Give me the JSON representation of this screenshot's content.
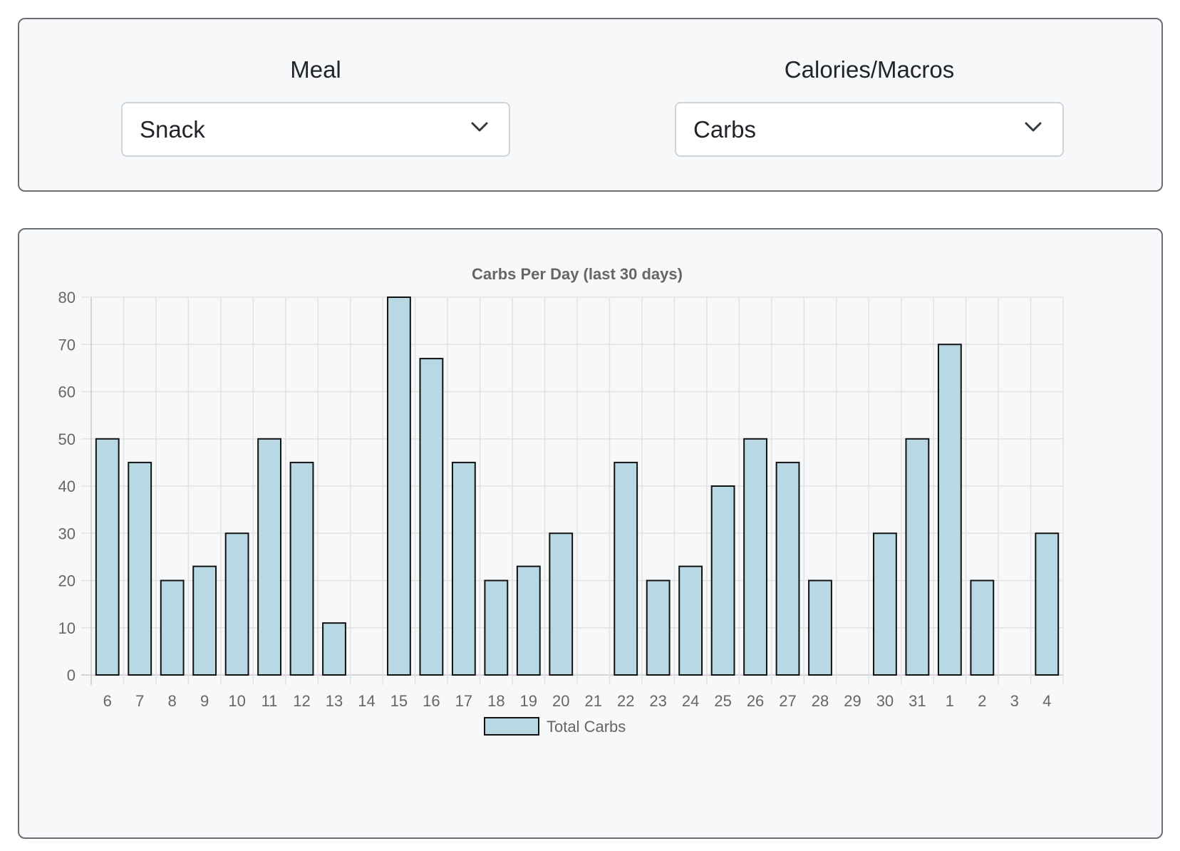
{
  "filters": {
    "meal": {
      "label": "Meal",
      "value": "Snack"
    },
    "macro": {
      "label": "Calories/Macros",
      "value": "Carbs"
    }
  },
  "chart_data": {
    "type": "bar",
    "title": "Carbs Per Day (last 30 days)",
    "xlabel": "",
    "ylabel": "",
    "categories": [
      "6",
      "7",
      "8",
      "9",
      "10",
      "11",
      "12",
      "13",
      "14",
      "15",
      "16",
      "17",
      "18",
      "19",
      "20",
      "21",
      "22",
      "23",
      "24",
      "25",
      "26",
      "27",
      "28",
      "29",
      "30",
      "31",
      "1",
      "2",
      "3",
      "4"
    ],
    "series": [
      {
        "name": "Total Carbs",
        "values": [
          50,
          45,
          20,
          23,
          30,
          50,
          45,
          11,
          0,
          80,
          67,
          45,
          20,
          23,
          30,
          0,
          45,
          20,
          23,
          40,
          50,
          45,
          20,
          0,
          30,
          50,
          70,
          20,
          0,
          30
        ],
        "color": "#b8d9e3",
        "border_color": "#111111"
      }
    ],
    "ylim": [
      0,
      80
    ],
    "yticks": [
      0,
      10,
      20,
      30,
      40,
      50,
      60,
      70,
      80
    ],
    "grid": true,
    "legend": "bottom-center"
  }
}
